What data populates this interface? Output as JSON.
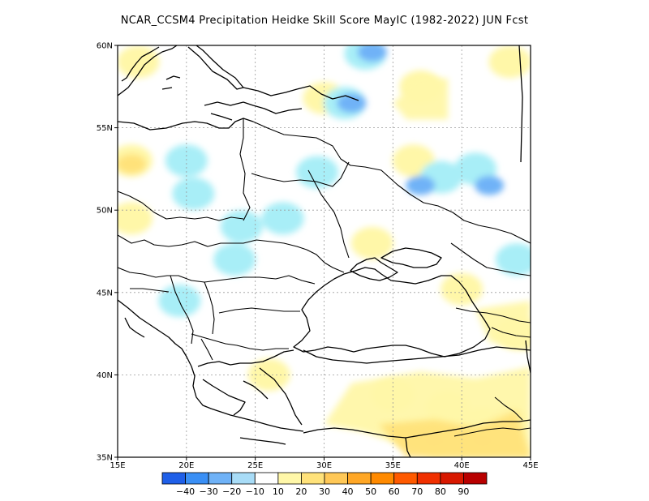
{
  "title": "NCAR_CCSM4  Precipitation Heidke Skill Score MayIC (1982-2022) JUN Fcst",
  "map": {
    "lon_range": [
      15,
      45
    ],
    "lat_range": [
      35,
      60
    ],
    "x_ticks": [
      {
        "value": 15,
        "label": "15E"
      },
      {
        "value": 20,
        "label": "20E"
      },
      {
        "value": 25,
        "label": "25E"
      },
      {
        "value": 30,
        "label": "30E"
      },
      {
        "value": 35,
        "label": "35E"
      },
      {
        "value": 40,
        "label": "40E"
      },
      {
        "value": 45,
        "label": "45E"
      }
    ],
    "y_ticks": [
      {
        "value": 60,
        "label": "60N"
      },
      {
        "value": 55,
        "label": "55N"
      },
      {
        "value": 50,
        "label": "50N"
      },
      {
        "value": 45,
        "label": "45N"
      },
      {
        "value": 40,
        "label": "40N"
      },
      {
        "value": 35,
        "label": "35N"
      }
    ],
    "grid": true,
    "blobs": [
      {
        "lon": 16.5,
        "lat": 59.0,
        "class": "10_20"
      },
      {
        "lon": 30.0,
        "lat": 56.8,
        "class": "10_20"
      },
      {
        "lon": 31.5,
        "lat": 56.5,
        "class": "20_10"
      },
      {
        "lon": 32.0,
        "lat": 56.5,
        "class": "30_20"
      },
      {
        "lon": 33.0,
        "lat": 59.5,
        "class": "20_10"
      },
      {
        "lon": 33.5,
        "lat": 59.6,
        "class": "30_20"
      },
      {
        "lon": 37.0,
        "lat": 57.5,
        "class": "10_20"
      },
      {
        "lon": 43.5,
        "lat": 59.0,
        "class": "10_20"
      },
      {
        "lon": 36.5,
        "lat": 53.0,
        "class": "10_20"
      },
      {
        "lon": 38.5,
        "lat": 52.0,
        "class": "20_10"
      },
      {
        "lon": 41.0,
        "lat": 52.5,
        "class": "20_10"
      },
      {
        "lon": 42.0,
        "lat": 51.5,
        "class": "30_20"
      },
      {
        "lon": 37.0,
        "lat": 51.5,
        "class": "30_20"
      },
      {
        "lon": 16.0,
        "lat": 53.0,
        "class": "10_20"
      },
      {
        "lon": 16.0,
        "lat": 52.8,
        "class": "20_30"
      },
      {
        "lon": 20.0,
        "lat": 53.0,
        "class": "20_10"
      },
      {
        "lon": 20.5,
        "lat": 51.0,
        "class": "20_10"
      },
      {
        "lon": 16.0,
        "lat": 49.5,
        "class": "10_20"
      },
      {
        "lon": 24.0,
        "lat": 49.0,
        "class": "20_10"
      },
      {
        "lon": 27.0,
        "lat": 49.5,
        "class": "20_10"
      },
      {
        "lon": 29.5,
        "lat": 52.3,
        "class": "20_10"
      },
      {
        "lon": 33.5,
        "lat": 48.0,
        "class": "10_20"
      },
      {
        "lon": 23.5,
        "lat": 47.0,
        "class": "20_10"
      },
      {
        "lon": 19.5,
        "lat": 44.5,
        "class": "20_10"
      },
      {
        "lon": 44.0,
        "lat": 47.0,
        "class": "20_10"
      },
      {
        "lon": 40.0,
        "lat": 45.2,
        "class": "10_20"
      },
      {
        "lon": 44.0,
        "lat": 42.5,
        "class": "10_20"
      },
      {
        "lon": 26.0,
        "lat": 40.0,
        "class": "10_20"
      },
      {
        "lon": 35.0,
        "lat": 38.8,
        "class": "10_20"
      },
      {
        "lon": 39.0,
        "lat": 38.0,
        "class": "10_20"
      },
      {
        "lon": 41.5,
        "lat": 37.0,
        "class": "10_20"
      },
      {
        "lon": 43.5,
        "lat": 37.5,
        "class": "20_30"
      },
      {
        "lon": 38.0,
        "lat": 36.0,
        "class": "20_30"
      },
      {
        "lon": 41.5,
        "lat": 36.0,
        "class": "20_30"
      }
    ]
  },
  "colorbar": {
    "colors": [
      "#1f5fe8",
      "#3a8ff5",
      "#6fb2f7",
      "#a8dcf7",
      "#ffffff",
      "#fff7a8",
      "#ffe27a",
      "#ffc857",
      "#ffa726",
      "#ff8a00",
      "#ff5a00",
      "#f03000",
      "#d81800",
      "#b80000"
    ],
    "labels": [
      "−40",
      "−30",
      "−20",
      "−10",
      "10",
      "20",
      "30",
      "40",
      "50",
      "60",
      "70",
      "80",
      "90"
    ]
  },
  "legend_colors": {
    "10_20": "#fff7a8",
    "20_30": "#ffe27a",
    "20_10": "#a8eef7",
    "30_20": "#6fb2f7"
  }
}
